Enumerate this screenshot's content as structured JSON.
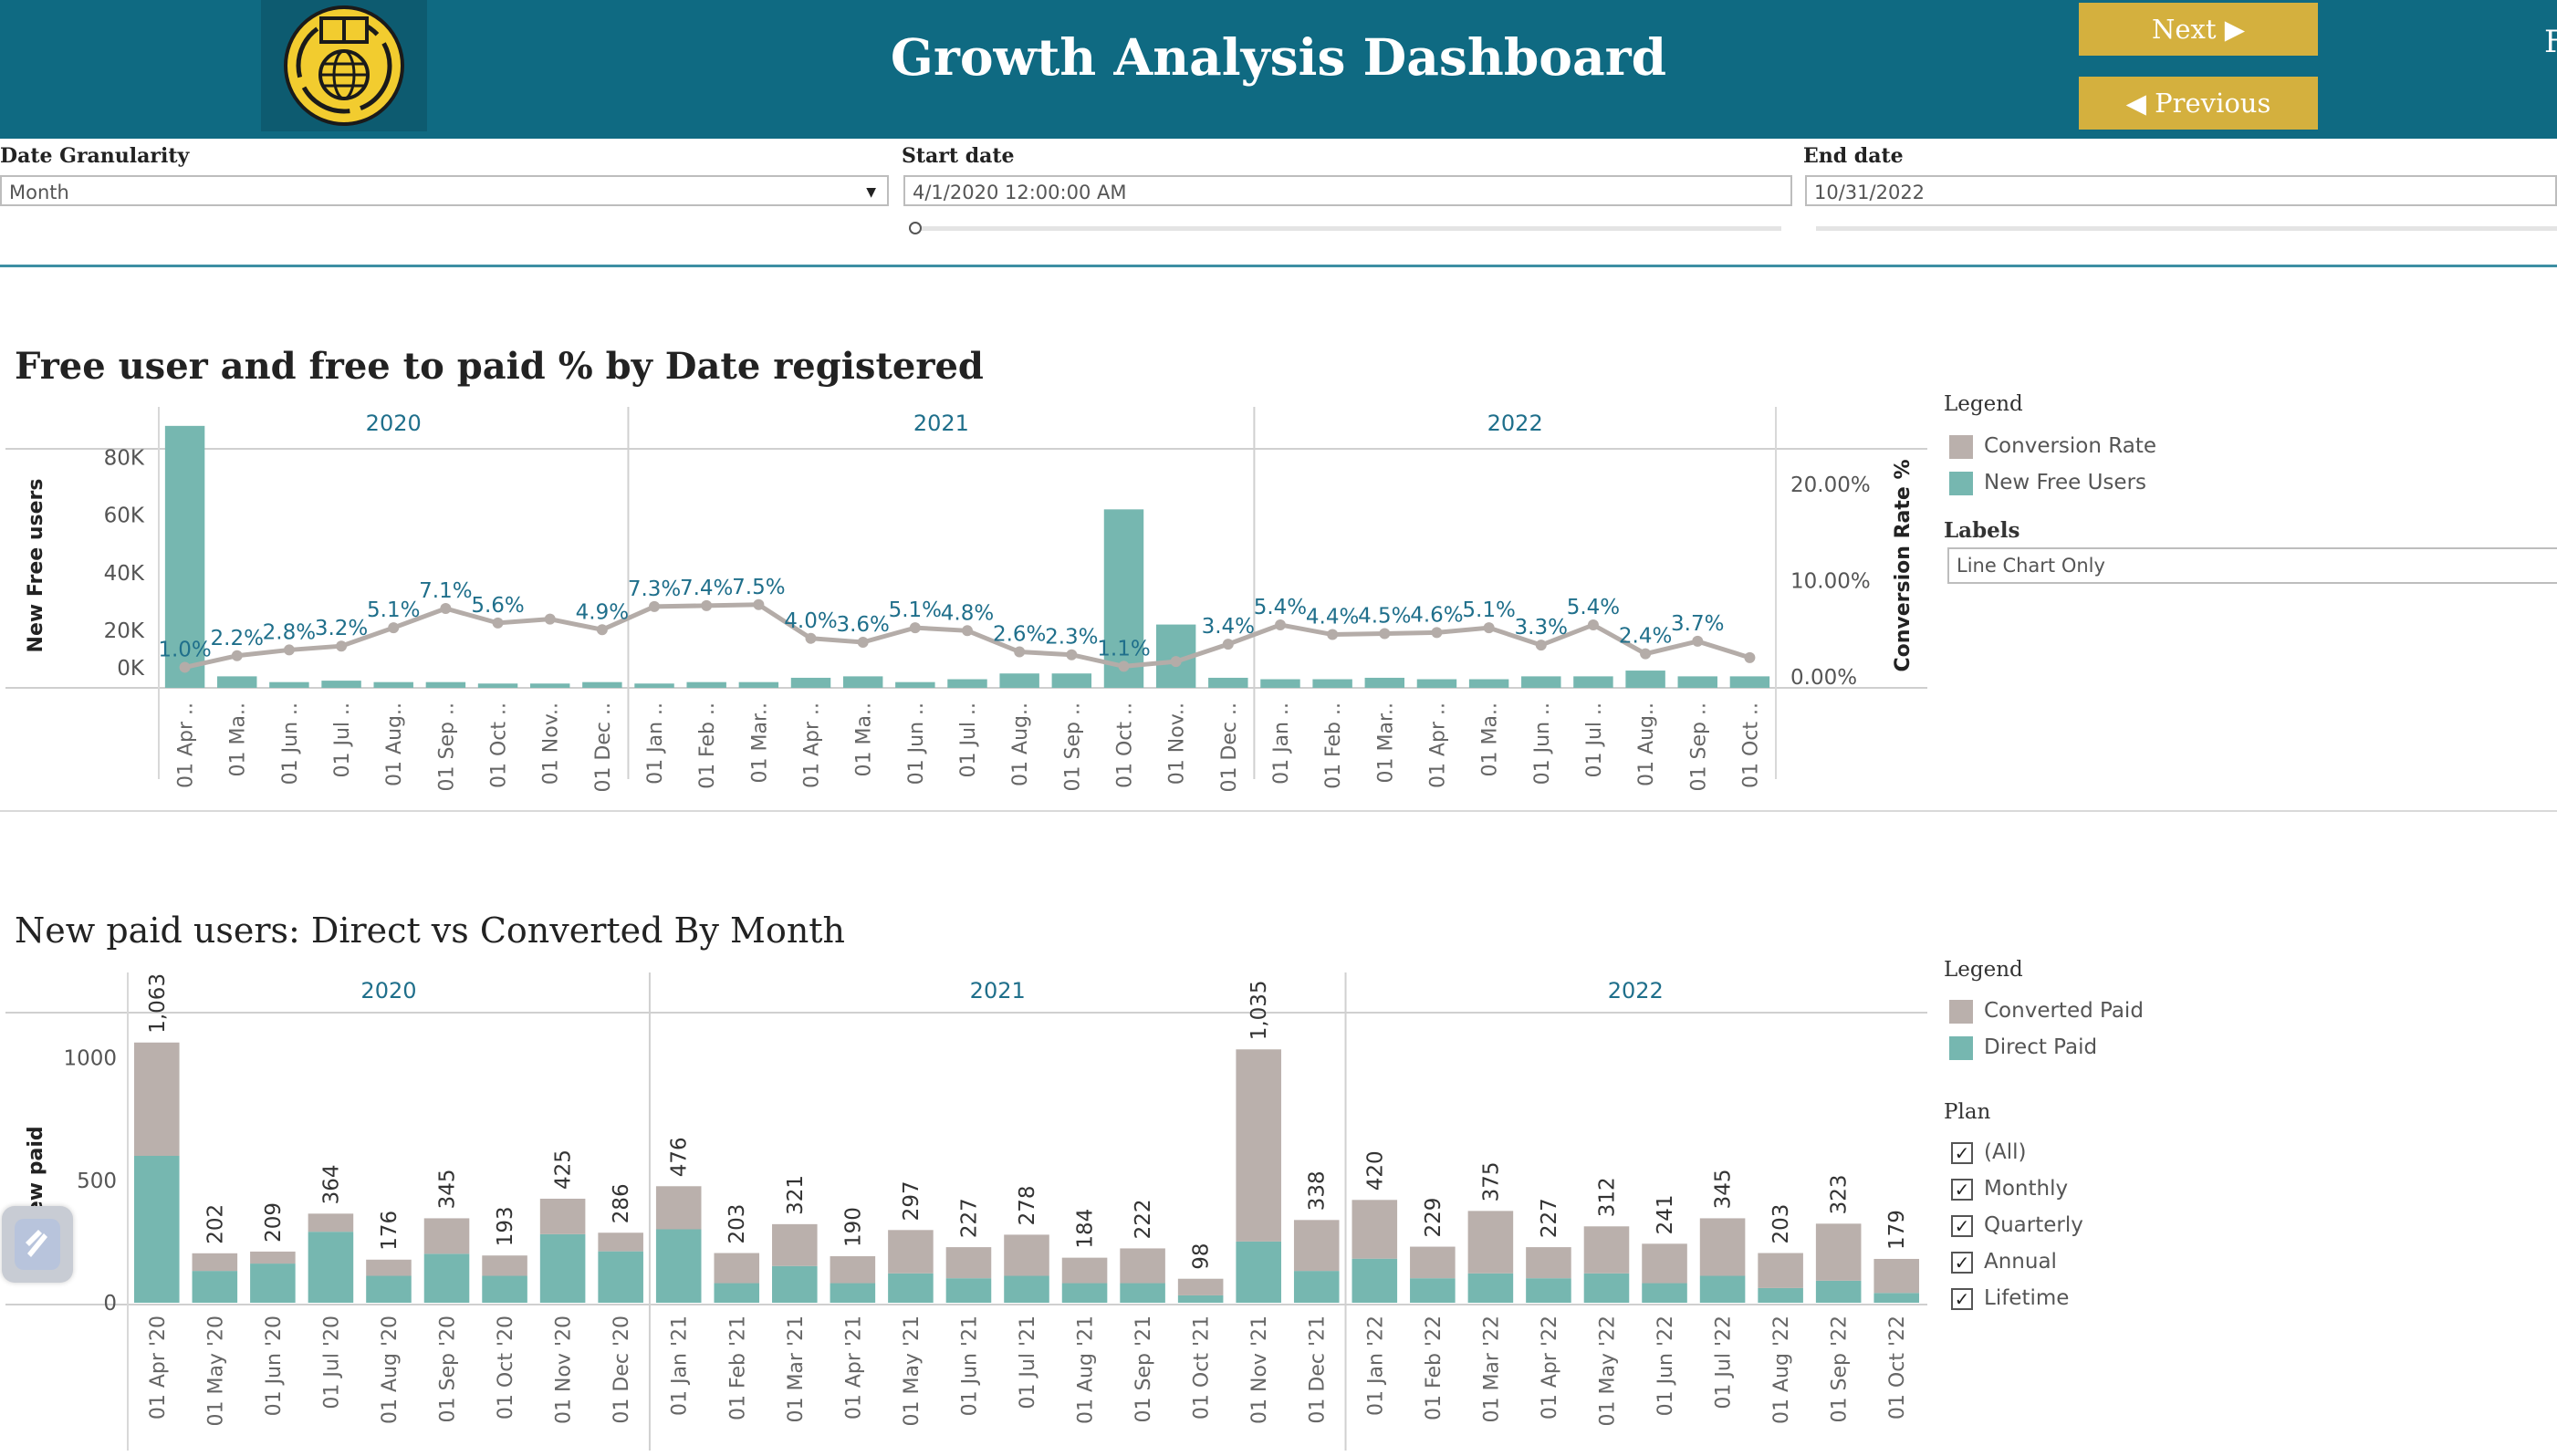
{
  "header": {
    "title": "Growth Analysis Dashboard",
    "next_label": "Next ▶",
    "previous_label": "◀ Previous",
    "cut_text": "F",
    "colors": {
      "bar": "#0f6a82",
      "button": "#d4b03e",
      "logo_yellow": "#f2cc2f"
    }
  },
  "filters": {
    "granularity": {
      "label": "Date Granularity",
      "value": "Month"
    },
    "start_date": {
      "label": "Start date",
      "value": "4/1/2020 12:00:00 AM"
    },
    "end_date": {
      "label": "End  date",
      "value": "10/31/2022"
    }
  },
  "chart1_title": "Free user and free to paid % by Date registered",
  "chart2_title": "New paid users: Direct vs Converted By Month",
  "colors": {
    "teal": "#76b7b0",
    "grey": "#bab0ac",
    "line": "#b4aca8",
    "label_teal": "#1f6f8b",
    "year_header": "#1f6f8b"
  },
  "chart_data": [
    {
      "type": "bar",
      "title": "Free user and free to paid % by Date registered",
      "ylabel": "New Free users",
      "y2label": "Conversion Rate %",
      "y_ticks": [
        "80K",
        "60K",
        "40K",
        "20K",
        "0K"
      ],
      "y2_ticks": [
        "20.00%",
        "10.00%",
        "0.00%"
      ],
      "ylim": [
        0,
        90000
      ],
      "y2lim": [
        0,
        25
      ],
      "years": [
        "2020",
        "2021",
        "2022"
      ],
      "year_groups": [
        9,
        12,
        10
      ],
      "categories": [
        "01 Apr ..",
        "01 Ma..",
        "01 Jun ..",
        "01 Jul ..",
        "01 Aug..",
        "01 Sep ..",
        "01 Oct ..",
        "01 Nov..",
        "01 Dec ..",
        "01 Jan ..",
        "01 Feb ..",
        "01 Mar..",
        "01 Apr ..",
        "01 Ma..",
        "01 Jun ..",
        "01 Jul ..",
        "01 Aug..",
        "01 Sep ..",
        "01 Oct ..",
        "01 Nov..",
        "01 Dec ..",
        "01 Jan ..",
        "01 Feb ..",
        "01 Mar..",
        "01 Apr ..",
        "01 Ma..",
        "01 Jun ..",
        "01 Jul ..",
        "01 Aug..",
        "01 Sep ..",
        "01 Oct .."
      ],
      "series": [
        {
          "name": "New Free Users",
          "kind": "bar",
          "values": [
            91000,
            4000,
            2000,
            2500,
            2000,
            2000,
            1500,
            1500,
            2000,
            1500,
            2000,
            2000,
            3500,
            4000,
            2000,
            3000,
            5000,
            5000,
            62000,
            22000,
            3500,
            3000,
            3000,
            3500,
            3000,
            3000,
            4000,
            4000,
            6000,
            4000,
            4000
          ]
        },
        {
          "name": "Conversion Rate",
          "kind": "line",
          "values": [
            1.0,
            2.2,
            2.8,
            3.2,
            5.1,
            7.1,
            5.6,
            6.0,
            4.9,
            7.3,
            7.4,
            7.5,
            4.0,
            3.6,
            5.1,
            4.8,
            2.6,
            2.3,
            1.1,
            1.6,
            3.4,
            5.4,
            4.4,
            4.5,
            4.6,
            5.1,
            3.3,
            5.4,
            2.4,
            3.7,
            2.0
          ]
        }
      ],
      "point_labels": [
        "1.0%",
        "2.2%",
        "2.8%",
        "3.2%",
        "5.1%",
        "7.1%",
        "5.6%",
        "",
        "4.9%",
        "7.3%",
        "7.4%",
        "7.5%",
        "4.0%",
        "3.6%",
        "5.1%",
        "4.8%",
        "2.6%",
        "2.3%",
        "1.1%",
        "",
        "3.4%",
        "5.4%",
        "4.4%",
        "4.5%",
        "4.6%",
        "5.1%",
        "3.3%",
        "5.4%",
        "2.4%",
        "3.7%",
        ""
      ],
      "legend": {
        "title": "Legend",
        "items": [
          "Conversion Rate",
          "New Free Users"
        ]
      },
      "labels_control": {
        "title": "Labels",
        "value": "Line Chart Only"
      }
    },
    {
      "type": "bar",
      "title": "New paid users: Direct vs Converted By Month",
      "ylabel": "New paid",
      "y_ticks": [
        "1000",
        "500",
        "0"
      ],
      "ylim": [
        0,
        1200
      ],
      "years": [
        "2020",
        "2021",
        "2022"
      ],
      "year_groups": [
        9,
        12,
        10
      ],
      "categories": [
        "01 Apr '20",
        "01 May '20",
        "01 Jun '20",
        "01 Jul '20",
        "01 Aug '20",
        "01 Sep '20",
        "01 Oct '20",
        "01 Nov '20",
        "01 Dec '20",
        "01 Jan '21",
        "01 Feb '21",
        "01 Mar '21",
        "01 Apr '21",
        "01 May '21",
        "01 Jun '21",
        "01 Jul '21",
        "01 Aug '21",
        "01 Sep '21",
        "01 Oct '21",
        "01 Nov '21",
        "01 Dec '21",
        "01 Jan '22",
        "01 Feb '22",
        "01 Mar '22",
        "01 Apr '22",
        "01 May '22",
        "01 Jun '22",
        "01 Jul '22",
        "01 Aug '22",
        "01 Sep '22",
        "01 Oct '22"
      ],
      "totals": [
        1063,
        202,
        209,
        364,
        176,
        345,
        193,
        425,
        286,
        476,
        203,
        321,
        190,
        297,
        227,
        278,
        184,
        222,
        98,
        1035,
        338,
        420,
        229,
        375,
        227,
        312,
        241,
        345,
        203,
        323,
        179
      ],
      "total_labels": [
        "1,063",
        "202",
        "209",
        "364",
        "176",
        "345",
        "193",
        "425",
        "286",
        "476",
        "203",
        "321",
        "190",
        "297",
        "227",
        "278",
        "184",
        "222",
        "98",
        "1,035",
        "338",
        "420",
        "229",
        "375",
        "227",
        "312",
        "241",
        "345",
        "203",
        "323",
        "179"
      ],
      "series": [
        {
          "name": "Direct Paid",
          "values": [
            600,
            130,
            160,
            290,
            110,
            200,
            110,
            280,
            210,
            300,
            80,
            150,
            80,
            120,
            100,
            110,
            80,
            80,
            30,
            250,
            130,
            180,
            100,
            120,
            100,
            120,
            80,
            110,
            60,
            90,
            40
          ]
        },
        {
          "name": "Converted Paid",
          "values": [
            463,
            72,
            49,
            74,
            66,
            145,
            83,
            145,
            76,
            176,
            123,
            171,
            110,
            177,
            127,
            168,
            104,
            142,
            68,
            785,
            208,
            240,
            129,
            255,
            127,
            192,
            161,
            235,
            143,
            233,
            139
          ]
        }
      ],
      "legend": {
        "title": "Legend",
        "items": [
          "Converted Paid",
          "Direct Paid"
        ]
      },
      "plan_filter": {
        "title": "Plan",
        "items": [
          "(All)",
          "Monthly",
          "Quarterly",
          "Annual",
          "Lifetime"
        ]
      }
    }
  ]
}
